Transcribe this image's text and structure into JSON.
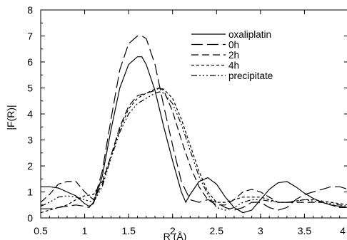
{
  "chart_data": {
    "type": "line",
    "title": "",
    "xlabel": "R (Å)",
    "ylabel": "|F(R)|",
    "xlim": [
      0.5,
      4.0
    ],
    "ylim": [
      0,
      8
    ],
    "x_ticks": [
      {
        "v": 0.5,
        "label": "0.5"
      },
      {
        "v": 1.0,
        "label": "1"
      },
      {
        "v": 1.5,
        "label": "1.5"
      },
      {
        "v": 2.0,
        "label": "2"
      },
      {
        "v": 2.5,
        "label": "2.5"
      },
      {
        "v": 3.0,
        "label": "3"
      },
      {
        "v": 3.5,
        "label": "3.5"
      },
      {
        "v": 4.0,
        "label": "4"
      }
    ],
    "y_ticks": [
      {
        "v": 0,
        "label": "0"
      },
      {
        "v": 1,
        "label": "1"
      },
      {
        "v": 2,
        "label": "2"
      },
      {
        "v": 3,
        "label": "3"
      },
      {
        "v": 4,
        "label": "4"
      },
      {
        "v": 5,
        "label": "5"
      },
      {
        "v": 6,
        "label": "6"
      },
      {
        "v": 7,
        "label": "7"
      },
      {
        "v": 8,
        "label": "8"
      }
    ],
    "grid": false,
    "legend_position": "top-right",
    "series": [
      {
        "name": "oxaliplatin",
        "dash": "solid",
        "x": [
          0.5,
          0.6,
          0.7,
          0.8,
          0.9,
          1.0,
          1.05,
          1.1,
          1.2,
          1.3,
          1.4,
          1.5,
          1.6,
          1.65,
          1.7,
          1.8,
          1.9,
          2.0,
          2.1,
          2.15,
          2.2,
          2.3,
          2.4,
          2.5,
          2.6,
          2.7,
          2.8,
          2.9,
          3.0,
          3.1,
          3.2,
          3.3,
          3.4,
          3.5,
          3.6,
          3.7,
          3.8,
          3.9,
          4.0
        ],
        "y": [
          1.2,
          1.2,
          1.15,
          1.0,
          0.85,
          0.55,
          0.45,
          0.55,
          1.6,
          3.4,
          5.0,
          5.9,
          6.2,
          6.2,
          5.9,
          4.9,
          3.5,
          2.2,
          1.0,
          0.6,
          0.9,
          1.4,
          1.55,
          1.3,
          0.8,
          0.4,
          0.2,
          0.3,
          0.7,
          1.1,
          1.35,
          1.4,
          1.2,
          0.95,
          0.75,
          0.6,
          0.5,
          0.45,
          0.4
        ]
      },
      {
        "name": "0h",
        "dash": "longdash",
        "x": [
          0.5,
          0.6,
          0.7,
          0.8,
          0.9,
          1.0,
          1.05,
          1.1,
          1.2,
          1.3,
          1.4,
          1.5,
          1.6,
          1.65,
          1.7,
          1.8,
          1.9,
          2.0,
          2.1,
          2.2,
          2.3,
          2.4,
          2.5,
          2.6,
          2.7,
          2.8,
          2.9,
          3.0,
          3.1,
          3.2,
          3.3,
          3.4,
          3.5,
          3.6,
          3.7,
          3.8,
          3.9,
          4.0
        ],
        "y": [
          0.35,
          0.35,
          0.4,
          0.45,
          0.5,
          0.45,
          0.4,
          0.6,
          1.8,
          3.8,
          5.7,
          6.7,
          7.0,
          7.0,
          6.9,
          5.9,
          4.3,
          2.8,
          1.4,
          0.7,
          0.6,
          0.7,
          0.6,
          0.4,
          0.3,
          0.4,
          0.6,
          0.6,
          0.4,
          0.3,
          0.4,
          0.7,
          0.9,
          1.0,
          1.1,
          1.2,
          1.2,
          1.1
        ]
      },
      {
        "name": "2h",
        "dash": "dash",
        "x": [
          0.5,
          0.6,
          0.7,
          0.8,
          0.9,
          1.0,
          1.1,
          1.2,
          1.3,
          1.4,
          1.5,
          1.6,
          1.7,
          1.8,
          1.85,
          1.9,
          2.0,
          2.1,
          2.2,
          2.3,
          2.4,
          2.5,
          2.6,
          2.7,
          2.8,
          2.9,
          3.0,
          3.1,
          3.2,
          3.3,
          3.4,
          3.5,
          3.6,
          3.7,
          3.8,
          3.9,
          4.0
        ],
        "y": [
          0.6,
          0.9,
          1.3,
          1.4,
          1.4,
          1.0,
          0.7,
          1.3,
          2.4,
          3.5,
          4.3,
          4.7,
          4.8,
          4.9,
          5.0,
          4.9,
          4.1,
          3.0,
          2.0,
          1.2,
          0.7,
          0.5,
          0.5,
          0.7,
          1.0,
          1.1,
          1.0,
          0.8,
          0.6,
          0.6,
          0.6,
          0.6,
          0.6,
          0.6,
          0.5,
          0.4,
          0.4
        ]
      },
      {
        "name": "4h",
        "dash": "shortdash",
        "x": [
          0.5,
          0.6,
          0.7,
          0.8,
          0.9,
          1.0,
          1.1,
          1.2,
          1.3,
          1.4,
          1.5,
          1.6,
          1.7,
          1.8,
          1.85,
          1.9,
          2.0,
          2.1,
          2.2,
          2.3,
          2.4,
          2.5,
          2.6,
          2.7,
          2.8,
          2.9,
          3.0,
          3.1,
          3.2,
          3.3,
          3.4,
          3.5,
          3.6,
          3.7,
          3.8,
          3.9,
          4.0
        ],
        "y": [
          0.2,
          0.3,
          0.4,
          0.5,
          0.7,
          0.85,
          0.9,
          1.4,
          2.4,
          3.4,
          4.2,
          4.6,
          4.8,
          4.95,
          5.0,
          4.95,
          4.6,
          3.8,
          2.8,
          1.8,
          1.0,
          0.6,
          0.6,
          0.7,
          0.8,
          0.8,
          0.8,
          0.7,
          0.6,
          0.6,
          0.65,
          0.7,
          0.7,
          0.65,
          0.6,
          0.55,
          0.5
        ]
      },
      {
        "name": "precipitate",
        "dash": "dashdot",
        "x": [
          0.5,
          0.6,
          0.7,
          0.8,
          0.9,
          1.0,
          1.1,
          1.2,
          1.3,
          1.4,
          1.5,
          1.6,
          1.7,
          1.8,
          1.85,
          1.9,
          2.0,
          2.1,
          2.2,
          2.3,
          2.4,
          2.5,
          2.6,
          2.7,
          2.8,
          2.9,
          3.0,
          3.1,
          3.2,
          3.3,
          3.4,
          3.5,
          3.6,
          3.7,
          3.8,
          3.9,
          4.0
        ],
        "y": [
          0.45,
          0.6,
          0.8,
          0.85,
          0.8,
          0.7,
          0.6,
          1.2,
          2.3,
          3.3,
          4.0,
          4.4,
          4.6,
          4.8,
          4.85,
          4.8,
          4.4,
          3.6,
          2.6,
          1.6,
          0.9,
          0.4,
          0.3,
          0.4,
          0.6,
          0.7,
          0.7,
          0.65,
          0.6,
          0.6,
          0.65,
          0.7,
          0.65,
          0.6,
          0.55,
          0.5,
          0.45
        ]
      }
    ]
  }
}
